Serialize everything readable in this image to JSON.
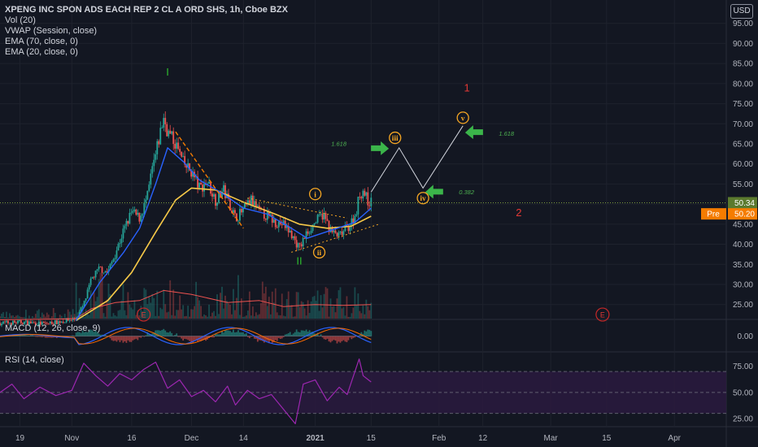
{
  "header": {
    "title": "XPENG INC SPON ADS EACH REP 2 CL A ORD SHS, 1h, Cboe BZX",
    "indicators": [
      "Vol (20)",
      "VWAP (Session, close)",
      "EMA (70, close, 0)",
      "EMA (20, close, 0)"
    ],
    "currency": "USD"
  },
  "colors": {
    "background": "#131722",
    "candle_up": "#26a69a",
    "candle_down": "#ef5350",
    "ema_fast": "#2962ff",
    "ema_slow": "#f7c948",
    "vwap": "#d1d4dc",
    "wave_green": "#2ebd2e",
    "wave_orange": "#f5a623",
    "wave_red": "#e53935",
    "arrow_green": "#3bb54a",
    "rsi_line": "#9c27b0",
    "rsi_band": "#2a1a3e",
    "price_line": "#7a9a3a"
  },
  "chart_data": [
    {
      "type": "candlestick",
      "panel": "price",
      "y_ticks": [
        25,
        30,
        35,
        40,
        45,
        50,
        55,
        60,
        65,
        70,
        75,
        80,
        85,
        90,
        95
      ],
      "y_tick_labels": [
        "25.00",
        "30.00",
        "35.00",
        "40.00",
        "45.00",
        "50.00",
        "55.00",
        "60.00",
        "65.00",
        "70.00",
        "75.00",
        "80.00",
        "85.00",
        "90.00",
        "95.00"
      ],
      "ylim": [
        21.5,
        100
      ],
      "x_tick_labels": [
        "19",
        "Nov",
        "16",
        "Dec",
        "14",
        "2021",
        "15",
        "Feb",
        "12",
        "Mar",
        "15",
        "Apr"
      ],
      "x_tick_dates": [
        "2020-10-19",
        "2020-11-01",
        "2020-11-16",
        "2020-12-01",
        "2020-12-14",
        "2021-01-01",
        "2021-01-15",
        "2021-02-01",
        "2021-02-12",
        "2021-03-01",
        "2021-03-15",
        "2021-04-01"
      ],
      "xlim": [
        "2020-10-14",
        "2021-04-14"
      ],
      "close_path": [
        [
          "2020-10-14",
          20.4
        ],
        [
          "2020-10-20",
          20.6
        ],
        [
          "2020-10-25",
          20.2
        ],
        [
          "2020-10-30",
          20.9
        ],
        [
          "2020-11-02",
          21.5
        ],
        [
          "2020-11-04",
          25.0
        ],
        [
          "2020-11-06",
          31.5
        ],
        [
          "2020-11-08",
          34.0
        ],
        [
          "2020-11-10",
          33.0
        ],
        [
          "2020-11-12",
          38.0
        ],
        [
          "2020-11-14",
          43.5
        ],
        [
          "2020-11-16",
          48.0
        ],
        [
          "2020-11-18",
          46.5
        ],
        [
          "2020-11-20",
          52.0
        ],
        [
          "2020-11-21",
          58.0
        ],
        [
          "2020-11-22",
          62.0
        ],
        [
          "2020-11-23",
          67.0
        ],
        [
          "2020-11-24",
          71.5
        ],
        [
          "2020-11-25",
          68.0
        ],
        [
          "2020-11-27",
          65.0
        ],
        [
          "2020-11-29",
          60.0
        ],
        [
          "2020-12-01",
          58.0
        ],
        [
          "2020-12-03",
          54.0
        ],
        [
          "2020-12-05",
          55.5
        ],
        [
          "2020-12-07",
          51.0
        ],
        [
          "2020-12-09",
          53.5
        ],
        [
          "2020-12-11",
          49.0
        ],
        [
          "2020-12-12",
          46.5
        ],
        [
          "2020-12-14",
          48.5
        ],
        [
          "2020-12-16",
          51.0
        ],
        [
          "2020-12-18",
          48.0
        ],
        [
          "2020-12-20",
          47.0
        ],
        [
          "2020-12-22",
          45.5
        ],
        [
          "2020-12-24",
          45.0
        ],
        [
          "2020-12-26",
          42.5
        ],
        [
          "2020-12-28",
          39.0
        ],
        [
          "2020-12-30",
          43.0
        ],
        [
          "2021-01-01",
          45.5
        ],
        [
          "2021-01-03",
          47.5
        ],
        [
          "2021-01-05",
          43.0
        ],
        [
          "2021-01-07",
          42.0
        ],
        [
          "2021-01-09",
          44.0
        ],
        [
          "2021-01-11",
          47.0
        ],
        [
          "2021-01-12",
          52.0
        ],
        [
          "2021-01-13",
          53.5
        ],
        [
          "2021-01-14",
          51.0
        ],
        [
          "2021-01-15",
          50.34
        ]
      ],
      "ema_fast_path": [
        [
          "2020-11-02",
          21.0
        ],
        [
          "2020-11-08",
          30.5
        ],
        [
          "2020-11-14",
          38.0
        ],
        [
          "2020-11-18",
          44.0
        ],
        [
          "2020-11-22",
          55.0
        ],
        [
          "2020-11-25",
          64.0
        ],
        [
          "2020-11-29",
          60.5
        ],
        [
          "2020-12-03",
          56.0
        ],
        [
          "2020-12-09",
          52.5
        ],
        [
          "2020-12-14",
          49.0
        ],
        [
          "2020-12-20",
          47.5
        ],
        [
          "2020-12-26",
          44.0
        ],
        [
          "2020-12-30",
          41.5
        ],
        [
          "2021-01-05",
          43.5
        ],
        [
          "2021-01-11",
          45.5
        ],
        [
          "2021-01-15",
          49.0
        ]
      ],
      "ema_slow_path": [
        [
          "2020-11-02",
          21.0
        ],
        [
          "2020-11-10",
          26.0
        ],
        [
          "2020-11-16",
          33.0
        ],
        [
          "2020-11-22",
          43.0
        ],
        [
          "2020-11-27",
          51.0
        ],
        [
          "2020-12-01",
          54.0
        ],
        [
          "2020-12-07",
          53.5
        ],
        [
          "2020-12-14",
          50.5
        ],
        [
          "2020-12-22",
          47.5
        ],
        [
          "2020-12-28",
          45.0
        ],
        [
          "2021-01-04",
          44.0
        ],
        [
          "2021-01-10",
          44.5
        ],
        [
          "2021-01-15",
          47.0
        ]
      ],
      "vwap_path": [
        [
          "2020-10-14",
          21.2
        ],
        [
          "2020-10-30",
          21.4
        ],
        [
          "2020-11-02",
          21.5
        ],
        [
          "2020-11-06",
          24.0
        ],
        [
          "2020-11-12",
          25.5
        ],
        [
          "2020-11-18",
          26.0
        ],
        [
          "2020-11-24",
          28.5
        ],
        [
          "2020-12-01",
          27.5
        ],
        [
          "2020-12-10",
          25.5
        ],
        [
          "2020-12-18",
          26.0
        ],
        [
          "2020-12-24",
          24.5
        ],
        [
          "2021-01-01",
          25.0
        ],
        [
          "2021-01-08",
          24.8
        ],
        [
          "2021-01-15",
          25.0
        ]
      ],
      "last_price": 50.34,
      "last_price_label": "50.34",
      "pre_label": "Pre",
      "pre_price": 50.2,
      "pre_price_label": "50.20",
      "wave_markers": [
        {
          "label": "I",
          "date": "2020-11-25",
          "price": 82.0,
          "style": "green-text"
        },
        {
          "label": "II",
          "date": "2020-12-28",
          "price": 35.0,
          "style": "green-text"
        },
        {
          "label": "i",
          "date": "2021-01-01",
          "price": 52.5,
          "style": "orange-circle"
        },
        {
          "label": "ii",
          "date": "2021-01-02",
          "price": 38.0,
          "style": "orange-circle"
        },
        {
          "label": "iii",
          "date": "2021-01-21",
          "price": 66.5,
          "style": "orange-circle"
        },
        {
          "label": "iv",
          "date": "2021-01-28",
          "price": 51.5,
          "style": "orange-circle"
        },
        {
          "label": "v",
          "date": "2021-02-07",
          "price": 71.5,
          "style": "orange-circle"
        },
        {
          "label": "1",
          "date": "2021-02-08",
          "price": 78.0,
          "style": "red-text"
        },
        {
          "label": "2",
          "date": "2021-02-21",
          "price": 47.0,
          "style": "red-text"
        }
      ],
      "fib_labels": [
        {
          "label": "1.618",
          "date": "2021-01-05",
          "price": 64.5
        },
        {
          "label": "1.618",
          "date": "2021-02-16",
          "price": 67.0
        },
        {
          "label": "0.382",
          "date": "2021-02-06",
          "price": 52.5
        }
      ],
      "projection_path": [
        [
          "2021-01-15",
          53.0
        ],
        [
          "2021-01-22",
          64.0
        ],
        [
          "2021-01-28",
          54.0
        ],
        [
          "2021-02-07",
          69.5
        ]
      ],
      "earnings_markers": [
        {
          "label": "E",
          "date": "2020-11-19"
        },
        {
          "label": "E",
          "date": "2021-03-14"
        }
      ]
    },
    {
      "type": "line",
      "panel": "macd",
      "title": "MACD (12, 26, close, 9)",
      "y_ticks": [
        0
      ],
      "y_tick_labels": [
        "0.00"
      ],
      "ylim": [
        -4,
        4
      ]
    },
    {
      "type": "line",
      "panel": "rsi",
      "title": "RSI (14, close)",
      "y_ticks": [
        25,
        50,
        75
      ],
      "y_tick_labels": [
        "25.00",
        "50.00",
        "75.00"
      ],
      "ylim": [
        18,
        88
      ],
      "band": [
        30,
        70
      ],
      "rsi_path": [
        [
          "2020-10-14",
          50
        ],
        [
          "2020-10-17",
          58
        ],
        [
          "2020-10-20",
          44
        ],
        [
          "2020-10-24",
          55
        ],
        [
          "2020-10-28",
          47
        ],
        [
          "2020-11-01",
          52
        ],
        [
          "2020-11-04",
          78
        ],
        [
          "2020-11-07",
          66
        ],
        [
          "2020-11-10",
          56
        ],
        [
          "2020-11-13",
          68
        ],
        [
          "2020-11-16",
          62
        ],
        [
          "2020-11-19",
          72
        ],
        [
          "2020-11-22",
          79
        ],
        [
          "2020-11-25",
          54
        ],
        [
          "2020-11-28",
          62
        ],
        [
          "2020-12-01",
          46
        ],
        [
          "2020-12-04",
          52
        ],
        [
          "2020-12-07",
          41
        ],
        [
          "2020-12-10",
          56
        ],
        [
          "2020-12-12",
          38
        ],
        [
          "2020-12-15",
          52
        ],
        [
          "2020-12-18",
          44
        ],
        [
          "2020-12-21",
          48
        ],
        [
          "2020-12-24",
          34
        ],
        [
          "2020-12-27",
          20
        ],
        [
          "2020-12-29",
          58
        ],
        [
          "2021-01-01",
          62
        ],
        [
          "2021-01-04",
          42
        ],
        [
          "2021-01-07",
          55
        ],
        [
          "2021-01-09",
          48
        ],
        [
          "2021-01-12",
          82
        ],
        [
          "2021-01-13",
          66
        ],
        [
          "2021-01-15",
          60
        ]
      ]
    }
  ]
}
